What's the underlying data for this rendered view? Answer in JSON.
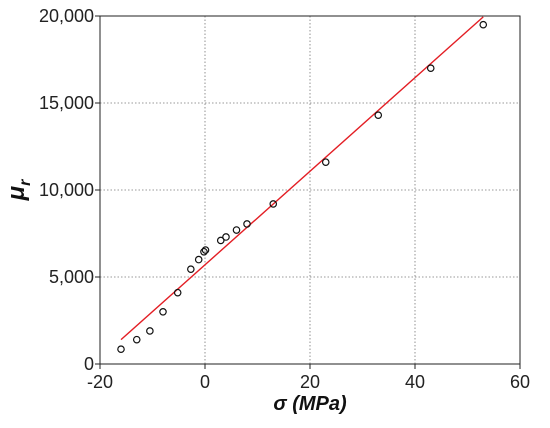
{
  "chart_data": {
    "type": "scatter",
    "title": "",
    "xlabel": "σ (MPa)",
    "ylabel_symbol": "μ",
    "ylabel_subscript": "r",
    "xlim": [
      -20,
      60
    ],
    "ylim": [
      0,
      20000
    ],
    "grid": true,
    "x_ticks": [
      -20,
      0,
      20,
      40,
      60
    ],
    "x_tick_labels": [
      "-20",
      "0",
      "20",
      "40",
      "60"
    ],
    "y_ticks": [
      0,
      5000,
      10000,
      15000,
      20000
    ],
    "y_tick_labels": [
      "0",
      "5,000",
      "10,000",
      "15,000",
      "20,000"
    ],
    "series": [
      {
        "marker": "open-circle",
        "color": "#111111",
        "x": [
          -16,
          -13,
          -10.5,
          -8,
          -5.2,
          -2.7,
          -1.2,
          -0.2,
          0.1,
          3,
          4,
          6,
          8,
          13,
          23,
          33,
          43,
          53
        ],
        "y": [
          850,
          1400,
          1900,
          3000,
          4100,
          5450,
          6000,
          6450,
          6550,
          7100,
          7300,
          7700,
          8050,
          9200,
          11600,
          14300,
          17000,
          19500
        ]
      }
    ],
    "fit_line": {
      "color": "#e31e24",
      "x": [
        -16,
        53
      ],
      "y": [
        1400,
        19950
      ]
    }
  }
}
